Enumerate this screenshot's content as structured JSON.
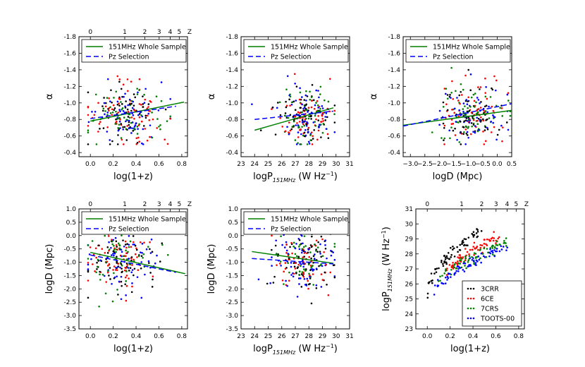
{
  "colors": {
    "whole_sample_line": "#008000",
    "pz_selection_line": "#0000ff",
    "3CRR": "#000000",
    "6CE": "#ff0000",
    "7CRS": "#008000",
    "TOOTS-00": "#0000ff"
  },
  "chart_data": [
    {
      "id": "alpha_vs_z",
      "type": "scatter",
      "xlabel": "log(1+z)",
      "ylabel": "α",
      "xlim": [
        -0.1,
        0.85
      ],
      "ylim": [
        -0.35,
        -1.8
      ],
      "y_inverted": true,
      "xticks": [
        "0.0",
        "0.2",
        "0.4",
        "0.6",
        "0.8"
      ],
      "xtick_values": [
        0,
        0.2,
        0.4,
        0.6,
        0.8
      ],
      "yticks": [
        "-0.4",
        "-0.6",
        "-0.8",
        "-1.0",
        "-1.2",
        "-1.4",
        "-1.6",
        "-1.8"
      ],
      "ytick_values": [
        -0.4,
        -0.6,
        -0.8,
        -1.0,
        -1.2,
        -1.4,
        -1.6,
        -1.8
      ],
      "top_axis": {
        "label": "Z",
        "ticks": [
          "0",
          "1",
          "2",
          "3",
          "4",
          "5"
        ],
        "tick_values": [
          0,
          0.301,
          0.477,
          0.602,
          0.699,
          0.778
        ]
      },
      "legend": {
        "location": "upper-left",
        "entries": [
          "151MHz Whole Sample",
          "Pz Selection"
        ]
      },
      "fit_lines": [
        {
          "name": "151MHz Whole Sample",
          "x": [
            0.0,
            0.82
          ],
          "y": [
            -0.78,
            -1.01
          ]
        },
        {
          "name": "Pz Selection",
          "x": [
            0.0,
            0.75
          ],
          "y": [
            -0.81,
            -0.96
          ]
        }
      ],
      "scatter": {
        "x_center": 0.3,
        "x_spread": 0.16,
        "x_min": -0.02,
        "x_max": 0.7,
        "y_center": -0.85,
        "y_spread": 0.18,
        "y_min": -0.5,
        "y_max": -1.45
      }
    },
    {
      "id": "alpha_vs_P",
      "type": "scatter",
      "xlabel": "logP151MHz (W Hz−1)",
      "ylabel": "α",
      "xlim": [
        23,
        31
      ],
      "ylim": [
        -0.35,
        -1.8
      ],
      "y_inverted": true,
      "xticks": [
        "23",
        "24",
        "25",
        "26",
        "27",
        "28",
        "29",
        "30",
        "31"
      ],
      "xtick_values": [
        23,
        24,
        25,
        26,
        27,
        28,
        29,
        30,
        31
      ],
      "yticks": [
        "-0.4",
        "-0.6",
        "-0.8",
        "-1.0",
        "-1.2",
        "-1.4",
        "-1.6",
        "-1.8"
      ],
      "ytick_values": [
        -0.4,
        -0.6,
        -0.8,
        -1.0,
        -1.2,
        -1.4,
        -1.6,
        -1.8
      ],
      "legend": {
        "location": "upper-left",
        "entries": [
          "151MHz Whole Sample",
          "Pz Selection"
        ]
      },
      "fit_lines": [
        {
          "name": "151MHz Whole Sample",
          "x": [
            24.0,
            29.8
          ],
          "y": [
            -0.67,
            -0.94
          ]
        },
        {
          "name": "Pz Selection",
          "x": [
            24.0,
            29.8
          ],
          "y": [
            -0.8,
            -0.9
          ]
        }
      ],
      "scatter": {
        "x_center": 27.6,
        "x_spread": 1.1,
        "x_min": 23.8,
        "x_max": 29.9,
        "y_center": -0.84,
        "y_spread": 0.17,
        "y_min": -0.5,
        "y_max": -1.45
      }
    },
    {
      "id": "alpha_vs_D",
      "type": "scatter",
      "xlabel": "logD (Mpc)",
      "ylabel": "α",
      "xlim": [
        -3.25,
        0.5
      ],
      "ylim": [
        -0.35,
        -1.8
      ],
      "y_inverted": true,
      "xticks": [
        "−3.0",
        "−2.5",
        "−2.0",
        "−1.5",
        "−1.0",
        "−0.5",
        "0.0",
        "0.5"
      ],
      "xtick_values": [
        -3.0,
        -2.5,
        -2.0,
        -1.5,
        -1.0,
        -0.5,
        0.0,
        0.5
      ],
      "yticks": [
        "-0.4",
        "-0.6",
        "-0.8",
        "-1.0",
        "-1.2",
        "-1.4",
        "-1.6",
        "-1.8"
      ],
      "ytick_values": [
        -0.4,
        -0.6,
        -0.8,
        -1.0,
        -1.2,
        -1.4,
        -1.6,
        -1.8
      ],
      "legend": {
        "location": "upper-left",
        "entries": [
          "151MHz Whole Sample",
          "Pz Selection"
        ]
      },
      "fit_lines": [
        {
          "name": "151MHz Whole Sample",
          "x": [
            -3.25,
            0.5
          ],
          "y": [
            -0.73,
            -0.91
          ]
        },
        {
          "name": "Pz Selection",
          "x": [
            -3.25,
            0.5
          ],
          "y": [
            -0.72,
            -0.99
          ]
        }
      ],
      "scatter": {
        "x_center": -0.9,
        "x_spread": 0.6,
        "x_min": -3.0,
        "x_max": 0.45,
        "y_center": -0.85,
        "y_spread": 0.17,
        "y_min": -0.5,
        "y_max": -1.45
      }
    },
    {
      "id": "D_vs_z",
      "type": "scatter",
      "xlabel": "log(1+z)",
      "ylabel": "logD (Mpc)",
      "xlim": [
        -0.1,
        0.85
      ],
      "ylim": [
        -3.5,
        1.0
      ],
      "xticks": [
        "0.0",
        "0.2",
        "0.4",
        "0.6",
        "0.8"
      ],
      "xtick_values": [
        0,
        0.2,
        0.4,
        0.6,
        0.8
      ],
      "yticks": [
        "1.0",
        "0.5",
        "0.0",
        "-0.5",
        "-1.0",
        "-1.5",
        "-2.0",
        "-2.5",
        "-3.0",
        "-3.5"
      ],
      "ytick_values": [
        1.0,
        0.5,
        0.0,
        -0.5,
        -1.0,
        -1.5,
        -2.0,
        -2.5,
        -3.0,
        -3.5
      ],
      "top_axis": {
        "label": "Z",
        "ticks": [
          "0",
          "1",
          "2",
          "3",
          "4",
          "5"
        ],
        "tick_values": [
          0,
          0.301,
          0.477,
          0.602,
          0.699,
          0.778
        ]
      },
      "legend": {
        "location": "upper-center",
        "entries": [
          "151MHz Whole Sample",
          "Pz Selection"
        ]
      },
      "fit_lines": [
        {
          "name": "151MHz Whole Sample",
          "x": [
            0.0,
            0.83
          ],
          "y": [
            -0.63,
            -1.43
          ]
        },
        {
          "name": "Pz Selection",
          "x": [
            0.0,
            0.75
          ],
          "y": [
            -0.73,
            -1.38
          ]
        }
      ],
      "scatter": {
        "x_center": 0.28,
        "x_spread": 0.16,
        "x_min": -0.02,
        "x_max": 0.7,
        "y_center": -0.9,
        "y_spread": 0.6,
        "y_min": -3.2,
        "y_max": 0.3
      }
    },
    {
      "id": "D_vs_P",
      "type": "scatter",
      "xlabel": "logP151MHz (W Hz−1)",
      "ylabel": "logD (Mpc)",
      "xlim": [
        23,
        31
      ],
      "ylim": [
        -3.5,
        1.0
      ],
      "xticks": [
        "23",
        "24",
        "25",
        "26",
        "27",
        "28",
        "29",
        "30",
        "31"
      ],
      "xtick_values": [
        23,
        24,
        25,
        26,
        27,
        28,
        29,
        30,
        31
      ],
      "yticks": [
        "1.0",
        "0.5",
        "0.0",
        "-0.5",
        "-1.0",
        "-1.5",
        "-2.0",
        "-2.5",
        "-3.0",
        "-3.5"
      ],
      "ytick_values": [
        1.0,
        0.5,
        0.0,
        -0.5,
        -1.0,
        -1.5,
        -2.0,
        -2.5,
        -3.0,
        -3.5
      ],
      "legend": {
        "location": "upper-center",
        "entries": [
          "151MHz Whole Sample",
          "Pz Selection"
        ]
      },
      "fit_lines": [
        {
          "name": "151MHz Whole Sample",
          "x": [
            23.8,
            29.8
          ],
          "y": [
            -0.6,
            -1.04
          ]
        },
        {
          "name": "Pz Selection",
          "x": [
            23.8,
            29.8
          ],
          "y": [
            -0.86,
            -1.06
          ]
        }
      ],
      "scatter": {
        "x_center": 27.6,
        "x_spread": 1.1,
        "x_min": 23.8,
        "x_max": 29.9,
        "y_center": -0.95,
        "y_spread": 0.6,
        "y_min": -3.2,
        "y_max": 0.3
      }
    },
    {
      "id": "P_vs_z",
      "type": "scatter",
      "xlabel": "log(1+z)",
      "ylabel": "logP151MHz (W Hz−1)",
      "xlim": [
        -0.1,
        0.85
      ],
      "ylim": [
        23,
        31
      ],
      "xticks": [
        "0.0",
        "0.2",
        "0.4",
        "0.6",
        "0.8"
      ],
      "xtick_values": [
        0,
        0.2,
        0.4,
        0.6,
        0.8
      ],
      "yticks": [
        "23",
        "24",
        "25",
        "26",
        "27",
        "28",
        "29",
        "30",
        "31"
      ],
      "ytick_values": [
        23,
        24,
        25,
        26,
        27,
        28,
        29,
        30,
        31
      ],
      "top_axis": {
        "label": "Z",
        "ticks": [
          "0",
          "1",
          "2",
          "3",
          "4",
          "5"
        ],
        "tick_values": [
          0,
          0.301,
          0.477,
          0.602,
          0.699,
          0.778
        ]
      },
      "legend": {
        "location": "lower-right",
        "entries": [
          "3CRR",
          "6CE",
          "7CRS",
          "TOOTS-00"
        ]
      },
      "samples": [
        {
          "name": "3CRR",
          "x_min": 0.0,
          "x_max": 0.48,
          "y_at_min": 25.0,
          "y_at_max": 29.6,
          "curve": 0.5,
          "spread": 0.35
        },
        {
          "name": "6CE",
          "x_min": 0.15,
          "x_max": 0.65,
          "y_at_min": 26.6,
          "y_at_max": 29.2,
          "curve": 0.7,
          "spread": 0.3
        },
        {
          "name": "7CRS",
          "x_min": 0.08,
          "x_max": 0.7,
          "y_at_min": 26.0,
          "y_at_max": 28.8,
          "curve": 0.7,
          "spread": 0.35
        },
        {
          "name": "TOOTS-00",
          "x_min": 0.05,
          "x_max": 0.7,
          "y_at_min": 25.5,
          "y_at_max": 28.5,
          "curve": 0.7,
          "spread": 0.3
        }
      ]
    }
  ]
}
